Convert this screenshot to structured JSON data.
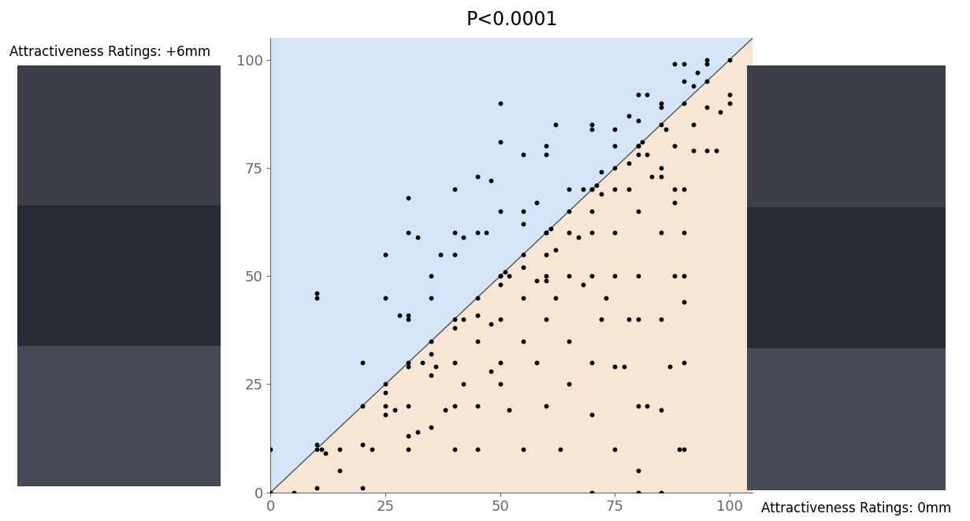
{
  "chart_data": {
    "type": "scatter",
    "title": "P<0.0001",
    "annotations": [
      "Attractiveness Ratings: +6mm",
      "Attractiveness Ratings: 0mm"
    ],
    "color": "#000000",
    "marker": "o",
    "x": [
      0,
      10,
      10,
      11,
      20,
      25,
      30,
      35,
      40,
      45,
      50,
      55,
      60,
      65,
      70,
      75,
      80,
      85,
      90,
      95,
      100,
      50,
      51,
      60,
      61,
      70,
      71,
      80,
      81,
      0,
      10,
      10,
      20,
      25,
      30,
      30,
      32,
      30,
      35,
      37,
      40,
      40,
      45,
      48,
      50,
      50,
      55,
      60,
      62,
      65,
      70,
      70,
      75,
      78,
      80,
      85,
      88,
      90,
      95,
      92,
      95,
      45,
      42,
      47,
      55,
      58,
      60,
      25,
      28,
      30,
      35,
      40,
      50,
      55,
      68,
      72,
      75,
      80,
      82,
      85,
      90,
      93,
      5,
      10,
      12,
      15,
      15,
      20,
      20,
      22,
      25,
      25,
      25,
      27,
      30,
      30,
      30,
      32,
      35,
      35,
      38,
      40,
      40,
      40,
      42,
      45,
      45,
      45,
      48,
      50,
      50,
      50,
      52,
      55,
      55,
      55,
      58,
      60,
      60,
      60,
      60,
      62,
      63,
      65,
      65,
      65,
      68,
      70,
      70,
      70,
      70,
      70,
      72,
      73,
      75,
      75,
      75,
      75,
      77,
      78,
      78,
      80,
      80,
      80,
      80,
      80,
      80,
      82,
      83,
      85,
      85,
      85,
      85,
      85,
      88,
      88,
      89,
      90,
      90,
      90,
      90,
      90,
      90,
      92,
      92,
      95,
      95,
      97,
      100,
      100,
      98,
      86,
      88,
      87,
      50,
      52,
      55,
      58,
      60,
      62,
      65,
      67,
      70,
      72,
      75,
      78,
      80,
      82,
      85,
      88,
      45,
      48,
      40,
      35,
      33,
      30,
      36,
      42
    ],
    "values": [
      0,
      10,
      11,
      10,
      20,
      25,
      30,
      35,
      40,
      45,
      50,
      55,
      60,
      65,
      70,
      75,
      80,
      85,
      90,
      95,
      100,
      50,
      51,
      60,
      61,
      70,
      71,
      80,
      81,
      10,
      45,
      46,
      30,
      55,
      68,
      60,
      59,
      40,
      50,
      55,
      70,
      60,
      73,
      72,
      90,
      81,
      78,
      80,
      85,
      70,
      85,
      84,
      84,
      87,
      92,
      90,
      99,
      99,
      99,
      94,
      100,
      60,
      59,
      60,
      65,
      67,
      78,
      45,
      41,
      41,
      45,
      55,
      65,
      62,
      70,
      74,
      80,
      86,
      92,
      89,
      95,
      97,
      0,
      1,
      9,
      10,
      5,
      1,
      11,
      10,
      20,
      18,
      23,
      19,
      10,
      13,
      20,
      14,
      15,
      27,
      19,
      20,
      10,
      30,
      25,
      10,
      20,
      35,
      28,
      40,
      30,
      25,
      19,
      45,
      35,
      10,
      30,
      40,
      20,
      50,
      55,
      45,
      10,
      35,
      50,
      25,
      48,
      0,
      18,
      30,
      50,
      60,
      40,
      45,
      10,
      29,
      50,
      60,
      29,
      40,
      70,
      0,
      5,
      20,
      40,
      50,
      65,
      20,
      73,
      0,
      19,
      40,
      60,
      73,
      50,
      70,
      10,
      10,
      30,
      44,
      50,
      60,
      70,
      79,
      85,
      79,
      89,
      79,
      90,
      92,
      88,
      84,
      67,
      29,
      48,
      50,
      52,
      49,
      49,
      56,
      60,
      59,
      65,
      69,
      70,
      76,
      78,
      78,
      75,
      80,
      41,
      39,
      38,
      32,
      30,
      29,
      29,
      40
    ],
    "xlim": [
      0,
      105
    ],
    "ylim": [
      0,
      105
    ],
    "xticks": [
      0,
      25,
      50,
      75,
      100
    ],
    "yticks": [
      0,
      25,
      50,
      75,
      100
    ]
  }
}
